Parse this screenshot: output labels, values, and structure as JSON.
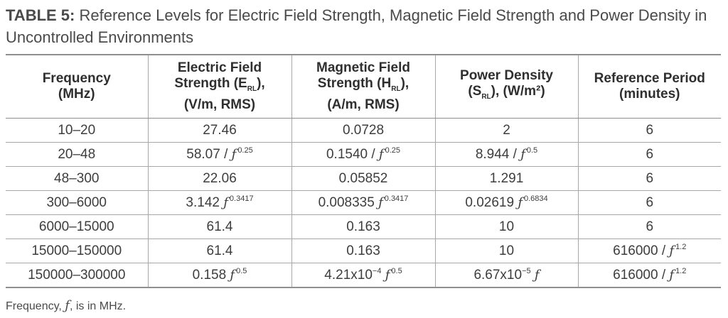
{
  "caption": {
    "label": "TABLE 5:",
    "text": "Reference Levels for Electric Field Strength, Magnetic Field Strength and Power Density in Uncontrolled Environments"
  },
  "headers": {
    "frequency": {
      "line1": "Frequency",
      "line2": "(MHz)"
    },
    "electric": {
      "line1": "Electric Field",
      "line2a": "Strength (E",
      "sub": "RL",
      "line2b": "),",
      "line3": "(V/m, RMS)"
    },
    "magnetic": {
      "line1": "Magnetic Field",
      "line2a": "Strength (H",
      "sub": "RL",
      "line2b": "),",
      "line3": "(A/m, RMS)"
    },
    "power": {
      "line1": "Power Density",
      "line2a": "(S",
      "sub": "RL",
      "line2b": "), (W/m²)"
    },
    "period": {
      "line1": "Reference Period",
      "line2": "(minutes)"
    }
  },
  "rows": [
    {
      "freq": "10–20",
      "e": {
        "base": "27.46",
        "f": "",
        "exp": ""
      },
      "h": {
        "base": "0.0728",
        "f": "",
        "exp": ""
      },
      "s": {
        "base": "2",
        "f": "",
        "exp": ""
      },
      "t": {
        "base": "6",
        "f": "",
        "exp": ""
      }
    },
    {
      "freq": "20–48",
      "e": {
        "base": "58.07 / ",
        "f": "ƒ",
        "exp": "0.25"
      },
      "h": {
        "base": "0.1540 / ",
        "f": "ƒ",
        "exp": "0.25"
      },
      "s": {
        "base": "8.944 / ",
        "f": "ƒ",
        "exp": "0.5"
      },
      "t": {
        "base": "6",
        "f": "",
        "exp": ""
      }
    },
    {
      "freq": "48–300",
      "e": {
        "base": "22.06",
        "f": "",
        "exp": ""
      },
      "h": {
        "base": "0.05852",
        "f": "",
        "exp": ""
      },
      "s": {
        "base": "1.291",
        "f": "",
        "exp": ""
      },
      "t": {
        "base": "6",
        "f": "",
        "exp": ""
      }
    },
    {
      "freq": "300–6000",
      "e": {
        "base": "3.142 ",
        "f": "ƒ",
        "exp": "0.3417"
      },
      "h": {
        "base": "0.008335 ",
        "f": "ƒ",
        "exp": "0.3417"
      },
      "s": {
        "base": "0.02619 ",
        "f": "ƒ",
        "exp": "0.6834"
      },
      "t": {
        "base": "6",
        "f": "",
        "exp": ""
      }
    },
    {
      "freq": "6000–15000",
      "e": {
        "base": "61.4",
        "f": "",
        "exp": ""
      },
      "h": {
        "base": "0.163",
        "f": "",
        "exp": ""
      },
      "s": {
        "base": "10",
        "f": "",
        "exp": ""
      },
      "t": {
        "base": "6",
        "f": "",
        "exp": ""
      }
    },
    {
      "freq": "15000–150000",
      "e": {
        "base": "61.4",
        "f": "",
        "exp": ""
      },
      "h": {
        "base": "0.163",
        "f": "",
        "exp": ""
      },
      "s": {
        "base": "10",
        "f": "",
        "exp": ""
      },
      "t": {
        "base": "616000 / ",
        "f": "ƒ",
        "exp": "1.2"
      }
    },
    {
      "freq": "150000–300000",
      "e": {
        "base": "0.158 ",
        "f": "ƒ",
        "exp": "0.5"
      },
      "h": {
        "base": "4.21x10",
        "exp10": "−4",
        "f2": "ƒ",
        "exp": "0.5"
      },
      "s": {
        "base": "6.67x10",
        "exp10": "−5",
        "f2": "ƒ",
        "exp": ""
      },
      "t": {
        "base": "616000 / ",
        "f": "ƒ",
        "exp": "1.2"
      }
    }
  ],
  "note": {
    "a": "Frequency, ",
    "f": "ƒ",
    "b": ", is in MHz."
  }
}
